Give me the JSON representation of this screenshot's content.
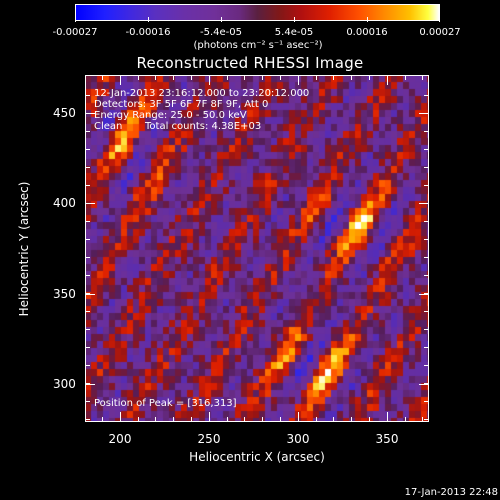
{
  "colorbar": {
    "tick_labels": [
      "-0.00027",
      "-0.00016",
      "-5.4e-05",
      "5.4e-05",
      "0.00016",
      "0.00027"
    ],
    "unit_label": "(photons cm⁻² s⁻¹ asec⁻²)"
  },
  "title": "Reconstructed RHESSI Image",
  "info": {
    "time_range": "12-Jan-2013 23:16:12.000 to 23:20:12.000",
    "detectors": "Detectors: 3F 5F 6F 7F 8F 9F, Att 0",
    "energy_range": "Energy Range: 25.0 - 50.0 keV",
    "algorithm": "Clean",
    "total_counts": "Total counts: 4.38E+03",
    "peak_position": "Position of Peak = [316,313]"
  },
  "axes": {
    "xlabel": "Heliocentric X (arcsec)",
    "ylabel": "Heliocentric Y (arcsec)",
    "x_ticks": [
      "200",
      "250",
      "300",
      "350"
    ],
    "y_ticks": [
      "450",
      "400",
      "350",
      "300"
    ],
    "x_range": [
      175,
      367
    ],
    "y_range": [
      279,
      472
    ]
  },
  "timestamp": "17-Jan-2013 22:48"
}
